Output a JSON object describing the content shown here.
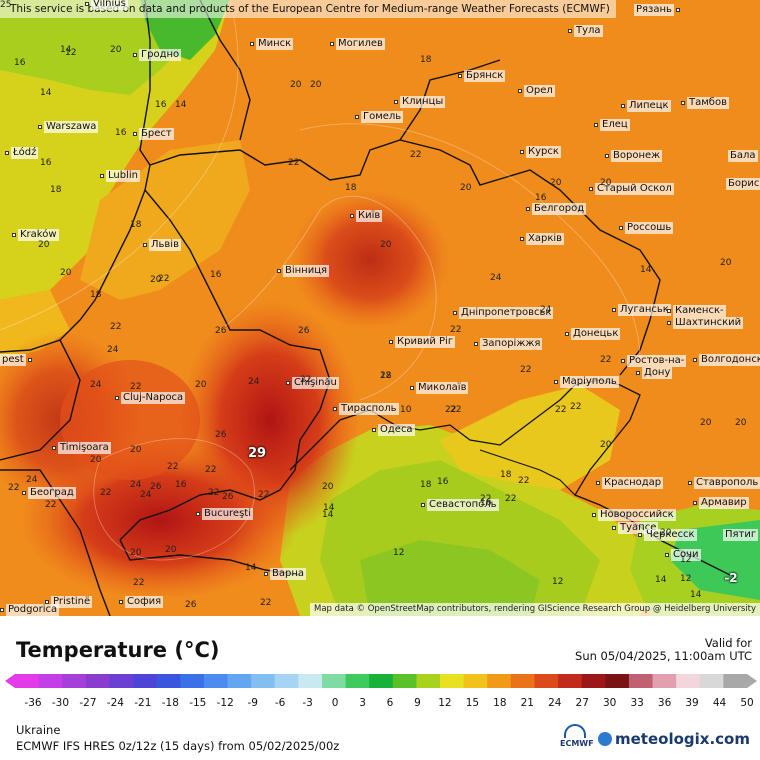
{
  "header": {
    "note": "This service is based on data and products of the European Centre for Medium-range Weather Forecasts (ECMWF)"
  },
  "map": {
    "attribution": "Map data © OpenStreetMap contributors, rendering GIScience Research Group @ Heidelberg University",
    "max_value": "29",
    "min_value": "-2",
    "cities": [
      {
        "name": "Vilnius"
      },
      {
        "name": "Рязань"
      },
      {
        "name": "Тула"
      },
      {
        "name": "Гродно"
      },
      {
        "name": "Минск"
      },
      {
        "name": "Могилев"
      },
      {
        "name": "Брянск"
      },
      {
        "name": "Орел"
      },
      {
        "name": "Липецк"
      },
      {
        "name": "Тамбов"
      },
      {
        "name": "Клинцы"
      },
      {
        "name": "Warszawa"
      },
      {
        "name": "Брест"
      },
      {
        "name": "Гомель"
      },
      {
        "name": "Елец"
      },
      {
        "name": "Łódź"
      },
      {
        "name": "Курск"
      },
      {
        "name": "Воронеж"
      },
      {
        "name": "Бала"
      },
      {
        "name": "Lublin"
      },
      {
        "name": "Старый Оскол"
      },
      {
        "name": "Борис"
      },
      {
        "name": "Київ"
      },
      {
        "name": "Белгород"
      },
      {
        "name": "Kraków"
      },
      {
        "name": "Львів"
      },
      {
        "name": "Харків"
      },
      {
        "name": "Россошь"
      },
      {
        "name": "Вінниця"
      },
      {
        "name": "Луганськ"
      },
      {
        "name": "Каменск-"
      },
      {
        "name": "Шахтинский"
      },
      {
        "name": "Дніпропетровськ"
      },
      {
        "name": "Донецьк"
      },
      {
        "name": "Кривий Ріг"
      },
      {
        "name": "Запоріжжя"
      },
      {
        "name": "Ростов-на-"
      },
      {
        "name": "Дону"
      },
      {
        "name": "Волгодонск"
      },
      {
        "name": "Chişinău"
      },
      {
        "name": "Миколаїв"
      },
      {
        "name": "Маріуполь"
      },
      {
        "name": "Cluj-Napoca"
      },
      {
        "name": "Тирасполь"
      },
      {
        "name": "Одеса"
      },
      {
        "name": "Timişoara"
      },
      {
        "name": "Београд"
      },
      {
        "name": "Краснодар"
      },
      {
        "name": "Ставрополь"
      },
      {
        "name": "Армавир"
      },
      {
        "name": "Bucureşti"
      },
      {
        "name": "Севастополь"
      },
      {
        "name": "Новороссийск"
      },
      {
        "name": "Туапсе"
      },
      {
        "name": "Черкесск"
      },
      {
        "name": "Пятиг"
      },
      {
        "name": "Сочи"
      },
      {
        "name": "Варна"
      },
      {
        "name": "Pristinë"
      },
      {
        "name": "София"
      },
      {
        "name": "Podgorica"
      },
      {
        "name": "pest"
      }
    ],
    "temperature_labels": [
      "14",
      "14",
      "12",
      "16",
      "20",
      "20",
      "20",
      "14",
      "16",
      "18",
      "16",
      "16",
      "18",
      "18",
      "20",
      "20",
      "22",
      "22",
      "20",
      "20",
      "20",
      "14",
      "16",
      "18",
      "16",
      "18",
      "22",
      "24",
      "24",
      "22",
      "22",
      "20",
      "20",
      "20",
      "18",
      "22",
      "20",
      "22",
      "24",
      "24",
      "22",
      "20",
      "20",
      "26",
      "26",
      "26",
      "22",
      "22",
      "22",
      "18",
      "22",
      "22",
      "22",
      "22",
      "22",
      "20",
      "24",
      "20",
      "22",
      "22",
      "26",
      "20",
      "20",
      "20",
      "22",
      "24",
      "22",
      "16",
      "20",
      "18",
      "22",
      "16",
      "14",
      "14",
      "12",
      "12",
      "12",
      "20",
      "16",
      "12",
      "10",
      "14",
      "14",
      "14",
      "24",
      "24",
      "22",
      "26",
      "22",
      "26",
      "22",
      "22",
      "22",
      "25"
    ]
  },
  "legend": {
    "title": "Temperature (°C)",
    "valid_label": "Valid for",
    "valid_time": "Sun 05/04/2025, 11:00am UTC",
    "ticks": [
      "-36",
      "-30",
      "-27",
      "-24",
      "-21",
      "-18",
      "-15",
      "-12",
      "-9",
      "-6",
      "-3",
      "0",
      "3",
      "6",
      "9",
      "12",
      "15",
      "18",
      "21",
      "24",
      "27",
      "30",
      "33",
      "36",
      "39",
      "44",
      "50"
    ],
    "colors": [
      "#e23be8",
      "#c340e8",
      "#a63fd9",
      "#8a3ccf",
      "#6b3fd1",
      "#4c44d6",
      "#3a56df",
      "#3a70e8",
      "#4a8cef",
      "#63a6f0",
      "#83bef2",
      "#a6d5f3",
      "#c8e9f0",
      "#7fdca0",
      "#3ecb5c",
      "#18b23a",
      "#5ac228",
      "#a8d21c",
      "#e8e020",
      "#f2c21c",
      "#f09a18",
      "#ea7218",
      "#dc4a1c",
      "#c22a1c",
      "#9c1818",
      "#7a1414",
      "#c06070",
      "#e0a0b0",
      "#f3d6dc",
      "#d8d8d8",
      "#a8a8a8"
    ]
  },
  "footer": {
    "region": "Ukraine",
    "model": "ECMWF IFS HRES 0z/12z (15 days) from  05/02/2025/00z",
    "ecmwf_logo_text": "ECMWF",
    "brand": "meteologix.com"
  }
}
